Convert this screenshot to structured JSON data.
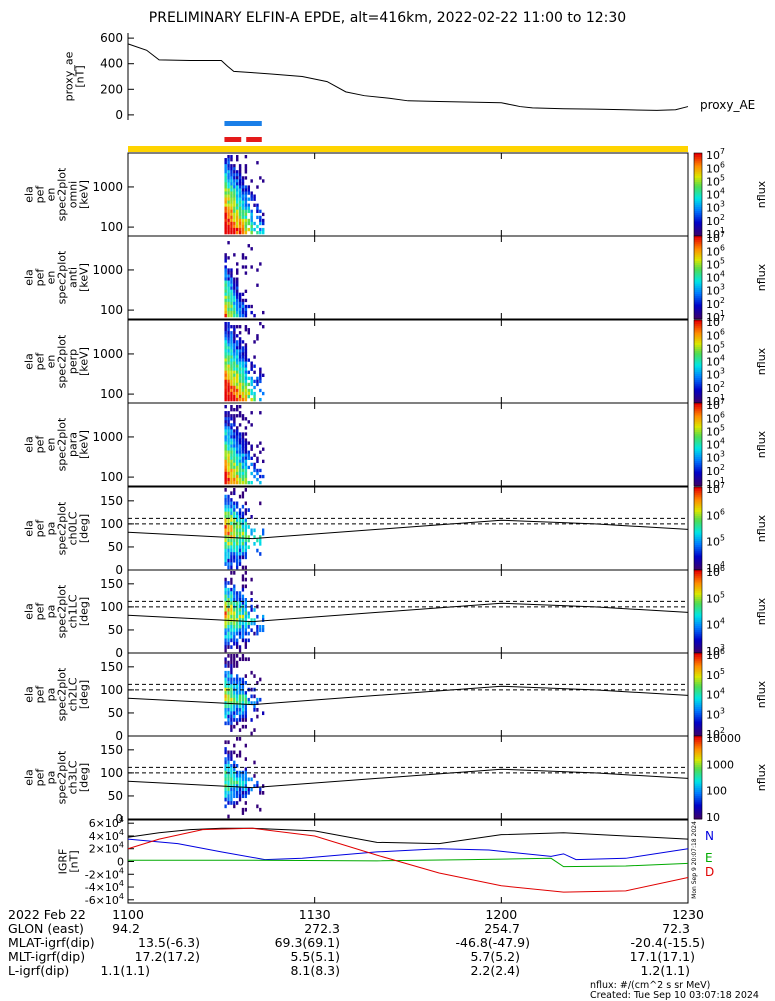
{
  "title": "PRELIMINARY ELFIN-A EPDE, alt=416km, 2022-02-22 11:00 to 12:30",
  "chart_data": {
    "type": "multi-panel spectrogram",
    "time_range": [
      "11:00",
      "12:30"
    ],
    "time_ticks": [
      {
        "t": 0,
        "label": "1100"
      },
      {
        "t": 30,
        "label": "1130"
      },
      {
        "t": 60,
        "label": "1200"
      },
      {
        "t": 90,
        "label": "1230"
      }
    ],
    "colors": {
      "flag_blue": "#1a7fe8",
      "flag_red": "#e41a1a",
      "flag_yellow": "#ffd400",
      "igrf_north": "#0000e0",
      "igrf_east": "#00aa00",
      "igrf_down": "#e00000"
    },
    "proxy_ae": {
      "ylabel": "proxy_ae\n[nT]",
      "legend": "proxy_AE",
      "ylim": [
        -40,
        640
      ],
      "yticks": [
        "0",
        "200",
        "400",
        "600"
      ],
      "points": [
        [
          0,
          555
        ],
        [
          3,
          505
        ],
        [
          5,
          430
        ],
        [
          10,
          425
        ],
        [
          15,
          425
        ],
        [
          16,
          380
        ],
        [
          17,
          340
        ],
        [
          20,
          330
        ],
        [
          23,
          320
        ],
        [
          28,
          300
        ],
        [
          32,
          260
        ],
        [
          35,
          180
        ],
        [
          38,
          150
        ],
        [
          42,
          130
        ],
        [
          45,
          110
        ],
        [
          50,
          105
        ],
        [
          55,
          100
        ],
        [
          60,
          95
        ],
        [
          62,
          75
        ],
        [
          63,
          65
        ],
        [
          65,
          55
        ],
        [
          70,
          48
        ],
        [
          75,
          45
        ],
        [
          80,
          40
        ],
        [
          85,
          35
        ],
        [
          88,
          40
        ],
        [
          90,
          65
        ]
      ]
    },
    "energy_panels": [
      {
        "ylabel": "ela\npef\nen\nspec2plot\nomni\n[keV]",
        "yticks": [
          "100",
          "1000"
        ],
        "cbar_ticks": [
          "10^1",
          "10^2",
          "10^3",
          "10^4",
          "10^5",
          "10^6",
          "10^7"
        ],
        "cbar_label": "nflux"
      },
      {
        "ylabel": "ela\npef\nen\nspec2plot\nanti\n[keV]",
        "yticks": [
          "100",
          "1000"
        ],
        "cbar_ticks": [
          "10^1",
          "10^2",
          "10^3",
          "10^4",
          "10^5",
          "10^6",
          "10^7"
        ],
        "cbar_label": "nflux"
      },
      {
        "ylabel": "ela\npef\nen\nspec2plot\nperp\n[keV]",
        "yticks": [
          "100",
          "1000"
        ],
        "cbar_ticks": [
          "10^1",
          "10^2",
          "10^3",
          "10^4",
          "10^5",
          "10^6",
          "10^7"
        ],
        "cbar_label": "nflux"
      },
      {
        "ylabel": "ela\npef\nen\nspec2plot\npara\n[keV]",
        "yticks": [
          "100",
          "1000"
        ],
        "cbar_ticks": [
          "10^1",
          "10^2",
          "10^3",
          "10^4",
          "10^5",
          "10^6",
          "10^7"
        ],
        "cbar_label": "nflux"
      }
    ],
    "pa_panels": [
      {
        "ylabel": "ela\npef\npa\nspec2plot\nch0LC\n[deg]",
        "yticks": [
          "0",
          "50",
          "100",
          "150"
        ],
        "cbar_ticks": [
          "10^4",
          "10^5",
          "10^6",
          "10^7"
        ],
        "cbar_label": "nflux"
      },
      {
        "ylabel": "ela\npef\npa\nspec2plot\nch1LC\n[deg]",
        "yticks": [
          "0",
          "50",
          "100",
          "150"
        ],
        "cbar_ticks": [
          "10^3",
          "10^4",
          "10^5",
          "10^6"
        ],
        "cbar_label": "nflux"
      },
      {
        "ylabel": "ela\npef\npa\nspec2plot\nch2LC\n[deg]",
        "yticks": [
          "0",
          "50",
          "100",
          "150"
        ],
        "cbar_ticks": [
          "10^2",
          "10^3",
          "10^4",
          "10^5",
          "10^6"
        ],
        "cbar_label": "nflux"
      },
      {
        "ylabel": "ela\npef\npa\nspec2plot\nch3LC\n[deg]",
        "yticks": [
          "0",
          "50",
          "100",
          "150"
        ],
        "cbar_ticks": [
          "10",
          "100",
          "1000",
          "10000"
        ],
        "cbar_label": "nflux"
      }
    ],
    "igrf": {
      "ylabel": "IGRF\n[nT]",
      "ylim": [
        -65000,
        65000
      ],
      "yticks": [
        "-6×10^4",
        "-4×10^4",
        "-2×10^4",
        "0",
        "2×10^4",
        "4×10^4",
        "6×10^4"
      ],
      "legend": [
        "N",
        "E",
        "D"
      ],
      "created_tag": "Mon Sep 9 20:07:18 2024"
    }
  },
  "footer": {
    "date": "2022 Feb 22",
    "rows": [
      {
        "label": "GLON (east)",
        "values": [
          "94.2",
          "272.3",
          "254.7",
          "72.3"
        ]
      },
      {
        "label": "MLAT-igrf(dip)",
        "values": [
          "13.5(-6.3)",
          "69.3(69.1)",
          "-46.8(-47.9)",
          "-20.4(-15.5)"
        ]
      },
      {
        "label": "MLT-igrf(dip)",
        "values": [
          "17.2(17.2)",
          "5.5(5.1)",
          "5.7(5.2)",
          "17.1(17.1)"
        ]
      },
      {
        "label": "L-igrf(dip)",
        "values": [
          "1.1(1.1)",
          "8.1(8.3)",
          "2.2(2.4)",
          "1.2(1.1)"
        ]
      }
    ],
    "units_note": "nflux: #/(cm^2 s sr MeV)",
    "created_note": "Created: Tue Sep 10 03:07:18 2024"
  }
}
